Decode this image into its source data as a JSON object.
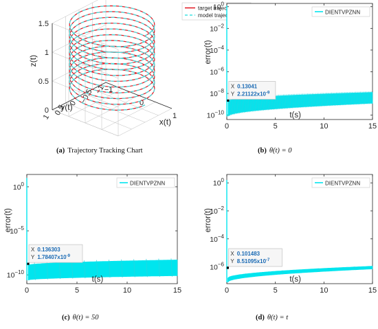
{
  "colors": {
    "target": "#e0141e",
    "model": "#3fe3e3",
    "series": "#00e5ee",
    "axis": "#262626",
    "tipBorder": "#c8c8c8",
    "tipBg": "#f6f6f6",
    "tipText": "#1a6ab4"
  },
  "chart_data": [
    {
      "type": "line",
      "panel": "a",
      "view": "3d",
      "caption_letter": "(a)",
      "caption_text": "Trajectory Tracking Chart",
      "xlabel": "x(t)",
      "ylabel": "y(t)",
      "zlabel": "z(t)",
      "xlim": [
        -1,
        1
      ],
      "ylim": [
        -1,
        1
      ],
      "zlim": [
        0,
        1.5
      ],
      "xticks": [
        "-1",
        "0",
        "1"
      ],
      "yticks": [
        "-1",
        "-0.5",
        "0",
        "0.5",
        "1"
      ],
      "zticks": [
        "0",
        "0.5",
        "1",
        "1.5"
      ],
      "helix": {
        "radius": 1,
        "z_start": 0.3,
        "z_end": 1.5,
        "turns": 12
      },
      "series": [
        {
          "name": "target trajectory",
          "style": "solid"
        },
        {
          "name": "model trajectory",
          "style": "dashed"
        }
      ],
      "legend": "top-right"
    },
    {
      "type": "line",
      "panel": "b",
      "yscale": "log",
      "caption_letter": "(b)",
      "caption_text": "θ(t) = 0",
      "xlabel": "t(s)",
      "ylabel": "error(t)",
      "xlim": [
        0,
        15
      ],
      "xticks": [
        0,
        5,
        10,
        15
      ],
      "ylim_exp": [
        -10.4,
        0.3
      ],
      "yticks_exp": [
        0,
        -2,
        -4,
        -6,
        -8,
        -10
      ],
      "series": [
        {
          "name": "DIENTVPZNN"
        }
      ],
      "legend": "top-right",
      "envelope": {
        "t_start": 0.13,
        "upper_start_exp": -8.7,
        "upper_end_exp": -7.9,
        "lower_start_exp": -10.1,
        "lower_end_exp": -8.9,
        "ripples": 90
      },
      "initial_exp": 0.1,
      "datatip": {
        "x_label": "X",
        "x_value": "0.13041",
        "y_label": "Y",
        "y_value": "2.21122x10",
        "y_exp": "-9",
        "x": 0.13041,
        "y_exp_num": -8.655
      }
    },
    {
      "type": "line",
      "panel": "c",
      "yscale": "log",
      "caption_letter": "(c)",
      "caption_text": "θ(t) = 50",
      "xlabel": "t(s)",
      "ylabel": "error(t)",
      "xlim": [
        0,
        15
      ],
      "xticks": [
        0,
        5,
        10,
        15
      ],
      "ylim_exp": [
        -11,
        1.4
      ],
      "yticks_exp": [
        0,
        -5,
        -10
      ],
      "series": [
        {
          "name": "DIENTVPZNN"
        }
      ],
      "legend": "top-right",
      "envelope": {
        "t_start": 0.14,
        "upper_start_exp": -8.9,
        "upper_end_exp": -8.3,
        "lower_start_exp": -10.6,
        "lower_end_exp": -10.1,
        "ripples": 12
      },
      "initial_exp": 1.0,
      "datatip": {
        "x_label": "X",
        "x_value": "0.136303",
        "y_label": "Y",
        "y_value": "1.78407x10",
        "y_exp": "-9",
        "x": 0.136303,
        "y_exp_num": -8.749
      }
    },
    {
      "type": "line",
      "panel": "d",
      "yscale": "log",
      "caption_letter": "(d)",
      "caption_text": "θ(t) = t",
      "xlabel": "t(s)",
      "ylabel": "error(t)",
      "xlim": [
        0,
        15
      ],
      "xticks": [
        0,
        5,
        10,
        15
      ],
      "ylim_exp": [
        -7.2,
        0.6
      ],
      "yticks_exp": [
        0,
        -2,
        -4,
        -6
      ],
      "series": [
        {
          "name": "DIENTVPZNN"
        }
      ],
      "legend": "top-right",
      "envelope": {
        "t_start": 0.1,
        "upper_start_exp": -6.8,
        "upper_end_exp": -5.95,
        "lower_start_exp": -7.1,
        "lower_end_exp": -6.15,
        "ripples": 4
      },
      "initial_exp": 0.2,
      "datatip": {
        "x_label": "X",
        "x_value": "0.101483",
        "y_label": "Y",
        "y_value": "8.51095x10",
        "y_exp": "-7",
        "x": 0.101483,
        "y_exp_num": -6.07
      }
    }
  ]
}
